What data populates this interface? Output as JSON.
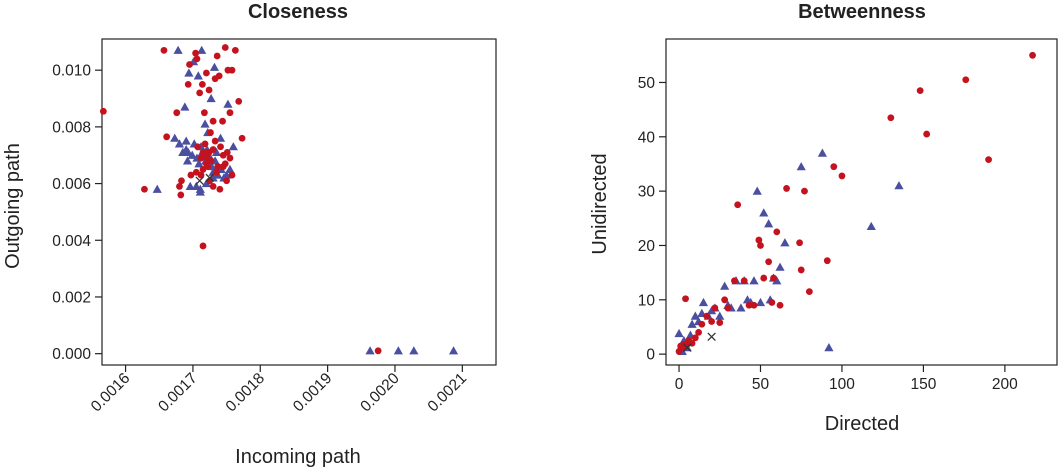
{
  "colors": {
    "series_a": "#4a4fa0",
    "series_b": "#c4131f",
    "marker_x": "#333333"
  },
  "chart_data": [
    {
      "type": "scatter",
      "title": "Closeness",
      "xlabel": "Incoming path",
      "ylabel": "Outgoing path",
      "xlim": [
        0.001565,
        0.00215
      ],
      "ylim": [
        -0.0004,
        0.0111
      ],
      "x_ticks": [
        0.0016,
        0.0017,
        0.0018,
        0.0019,
        0.002,
        0.0021
      ],
      "x_tick_labels": [
        "0.0016",
        "0.0017",
        "0.0018",
        "0.0019",
        "0.0020",
        "0.0021"
      ],
      "y_ticks": [
        0.0,
        0.002,
        0.004,
        0.006,
        0.008,
        0.01
      ],
      "y_tick_labels": [
        "0.000",
        "0.002",
        "0.004",
        "0.006",
        "0.008",
        "0.010"
      ],
      "grid": false,
      "series": [
        {
          "marker": "triangle",
          "color": "#4a4fa0",
          "x": [
            0.001647,
            0.001678,
            0.001688,
            0.001694,
            0.001701,
            0.001708,
            0.001713,
            0.001718,
            0.001722,
            0.001727,
            0.001732,
            0.001741,
            0.001752,
            0.00169,
            0.001693,
            0.001702,
            0.001712,
            0.001716,
            0.001721,
            0.001726,
            0.001735,
            0.00174,
            0.001673,
            0.00168,
            0.001685,
            0.00169,
            0.001692,
            0.001699,
            0.001706,
            0.001709,
            0.001714,
            0.001719,
            0.001723,
            0.001728,
            0.00173,
            0.001733,
            0.001737,
            0.001742,
            0.001746,
            0.00175,
            0.001755,
            0.00176,
            0.001705,
            0.001711,
            0.00172,
            0.001696,
            0.001711,
            0.00173,
            0.001963,
            0.002005,
            0.002028,
            0.002087
          ],
          "y": [
            0.0058,
            0.0107,
            0.0087,
            0.0099,
            0.0103,
            0.0098,
            0.0107,
            0.0081,
            0.0078,
            0.009,
            0.0101,
            0.0076,
            0.0088,
            0.0075,
            0.0071,
            0.0074,
            0.0073,
            0.007,
            0.0072,
            0.0069,
            0.0071,
            0.0065,
            0.0076,
            0.0074,
            0.0071,
            0.0072,
            0.0068,
            0.007,
            0.0069,
            0.0067,
            0.0071,
            0.0068,
            0.007,
            0.0066,
            0.0064,
            0.0068,
            0.0063,
            0.0065,
            0.0062,
            0.0063,
            0.0065,
            0.0073,
            0.0059,
            0.0058,
            0.006,
            0.0059,
            0.0057,
            0.0062,
            0.0001,
            0.0001,
            0.0001,
            0.0001
          ]
        },
        {
          "marker": "circle",
          "color": "#c4131f",
          "x": [
            0.001567,
            0.001628,
            0.001657,
            0.001661,
            0.001676,
            0.00168,
            0.001682,
            0.001693,
            0.001695,
            0.001704,
            0.001706,
            0.00171,
            0.001714,
            0.001717,
            0.00172,
            0.001724,
            0.001726,
            0.00173,
            0.001733,
            0.001736,
            0.001739,
            0.001744,
            0.001748,
            0.001752,
            0.001755,
            0.001758,
            0.001763,
            0.001768,
            0.001773,
            0.001707,
            0.001712,
            0.001715,
            0.001718,
            0.001721,
            0.001724,
            0.001727,
            0.00173,
            0.001733,
            0.001737,
            0.001741,
            0.001745,
            0.001748,
            0.001751,
            0.001755,
            0.001758,
            0.001712,
            0.00172,
            0.001725,
            0.00173,
            0.001735,
            0.00174,
            0.001745,
            0.00175,
            0.001683,
            0.001697,
            0.001705,
            0.001715,
            0.001722,
            0.001715,
            0.001721,
            0.001975
          ],
          "y": [
            0.00855,
            0.0058,
            0.0107,
            0.00765,
            0.0085,
            0.0059,
            0.0056,
            0.0095,
            0.0102,
            0.0106,
            0.0104,
            0.0092,
            0.0095,
            0.0085,
            0.0099,
            0.0093,
            0.0078,
            0.0082,
            0.0097,
            0.0105,
            0.0098,
            0.0082,
            0.0108,
            0.01,
            0.0085,
            0.01,
            0.0107,
            0.0089,
            0.0076,
            0.0073,
            0.0069,
            0.0071,
            0.0074,
            0.0069,
            0.0071,
            0.0068,
            0.0072,
            0.0075,
            0.0066,
            0.0073,
            0.007,
            0.0067,
            0.0071,
            0.0069,
            0.0063,
            0.0063,
            0.0067,
            0.0061,
            0.0059,
            0.0064,
            0.0058,
            0.0066,
            0.0061,
            0.0061,
            0.0063,
            0.0064,
            0.0065,
            0.0066,
            0.0038,
            0.0071,
            0.0001
          ]
        },
        {
          "marker": "x",
          "color": "#333333",
          "x": [
            0.00171,
            0.001725
          ],
          "y": [
            0.0061,
            0.0062
          ]
        }
      ]
    },
    {
      "type": "scatter",
      "title": "Betweenness",
      "xlabel": "Directed",
      "ylabel": "Unidirected",
      "xlim": [
        -8,
        232
      ],
      "ylim": [
        -2,
        58
      ],
      "x_ticks": [
        0,
        50,
        100,
        150,
        200
      ],
      "x_tick_labels": [
        "0",
        "50",
        "100",
        "150",
        "200"
      ],
      "y_ticks": [
        0,
        10,
        20,
        30,
        40,
        50
      ],
      "y_tick_labels": [
        "0",
        "10",
        "20",
        "30",
        "40",
        "50"
      ],
      "grid": false,
      "series": [
        {
          "marker": "triangle",
          "color": "#4a4fa0",
          "x": [
            0,
            1,
            2,
            3,
            5,
            7,
            8,
            10,
            12,
            14,
            15,
            18,
            20,
            22,
            25,
            28,
            30,
            32,
            35,
            38,
            40,
            42,
            44,
            46,
            48,
            52,
            55,
            58,
            60,
            62,
            65,
            50,
            56,
            75,
            88,
            92,
            118,
            135
          ],
          "y": [
            3.8,
            1.2,
            0.5,
            2.5,
            1.2,
            3.5,
            5.5,
            7,
            6,
            7.5,
            9.5,
            7,
            8,
            8.5,
            7,
            12.5,
            9,
            8.5,
            13.5,
            8.5,
            13.5,
            10,
            9.5,
            13.5,
            30,
            26,
            24,
            14,
            13.5,
            16,
            20.5,
            9.5,
            10,
            34.5,
            37,
            1.2,
            23.5,
            31
          ],
          "name": ""
        },
        {
          "marker": "circle",
          "color": "#c4131f",
          "x": [
            0,
            1,
            2,
            3,
            4,
            5,
            6,
            8,
            10,
            12,
            14,
            17,
            20,
            22,
            25,
            28,
            30,
            34,
            36,
            40,
            43,
            46,
            49,
            50,
            52,
            55,
            57,
            58,
            60,
            62,
            66,
            74,
            75,
            77,
            80,
            91,
            95,
            100,
            130,
            148,
            152,
            176,
            190,
            217
          ],
          "y": [
            0.5,
            1.5,
            1.2,
            1.8,
            10.2,
            1.8,
            2.5,
            2,
            3,
            4,
            5.5,
            7,
            6,
            8.5,
            5.8,
            10,
            8.5,
            13.5,
            27.5,
            13.5,
            9,
            9,
            21,
            20,
            14,
            17,
            9.5,
            14,
            22.5,
            9,
            30.5,
            20.5,
            15.5,
            30,
            11.5,
            17.2,
            34.5,
            32.8,
            43.5,
            48.5,
            40.5,
            50.5,
            35.8,
            55
          ],
          "name": ""
        },
        {
          "marker": "x",
          "color": "#333333",
          "x": [
            5,
            20
          ],
          "y": [
            1.2,
            3.2
          ]
        }
      ]
    }
  ]
}
